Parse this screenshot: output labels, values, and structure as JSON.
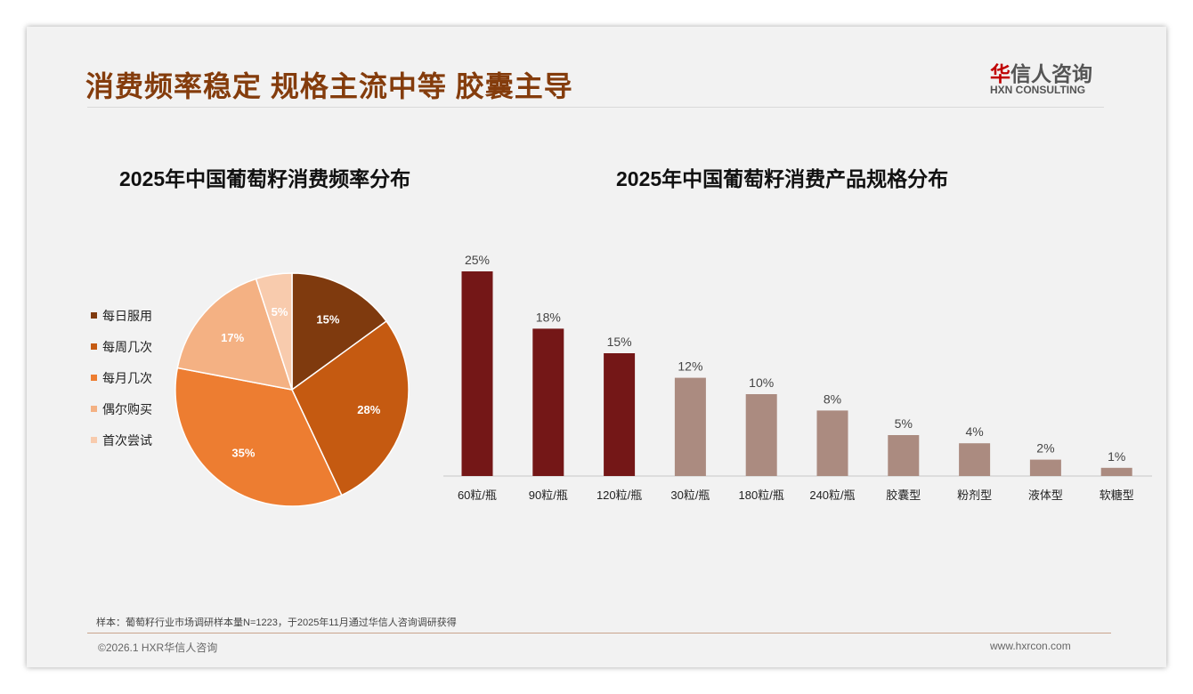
{
  "header": {
    "title": "消费频率稳定 规格主流中等 胶囊主导",
    "logo_cn_mark": "华",
    "logo_cn_rest": "信人咨询",
    "logo_en": "HXN CONSULTING"
  },
  "chart_data": [
    {
      "type": "pie",
      "title": "2025年中国葡萄籽消费频率分布",
      "legend_position": "left",
      "labels": [
        "每日服用",
        "每周几次",
        "每月几次",
        "偶尔购买",
        "首次尝试"
      ],
      "values": [
        15,
        28,
        35,
        17,
        5
      ],
      "value_labels": [
        "15%",
        "28%",
        "35%",
        "17%",
        "5%"
      ],
      "colors": [
        "#7f3a0e",
        "#c55a11",
        "#ed7d31",
        "#f4b183",
        "#f8cbad"
      ]
    },
    {
      "type": "bar",
      "title": "2025年中国葡萄籽消费产品规格分布",
      "categories": [
        "60粒/瓶",
        "90粒/瓶",
        "120粒/瓶",
        "30粒/瓶",
        "180粒/瓶",
        "240粒/瓶",
        "胶囊型",
        "粉剂型",
        "液体型",
        "软糖型"
      ],
      "values": [
        25,
        18,
        15,
        12,
        10,
        8,
        5,
        4,
        2,
        1
      ],
      "value_labels": [
        "25%",
        "18%",
        "15%",
        "12%",
        "10%",
        "8%",
        "5%",
        "4%",
        "2%",
        "1%"
      ],
      "colors": {
        "highlight": "#741717",
        "normal": "#ab8b80"
      },
      "highlight_count": 3,
      "ylim": [
        0,
        25
      ],
      "grid": false,
      "xlabel": "",
      "ylabel": ""
    }
  ],
  "footer": {
    "note": "样本：葡萄籽行业市场调研样本量N=1223，于2025年11月通过华信人咨询调研获得",
    "copyright": "©2026.1 HXR华信人咨询",
    "url": "www.hxrcon.com"
  }
}
